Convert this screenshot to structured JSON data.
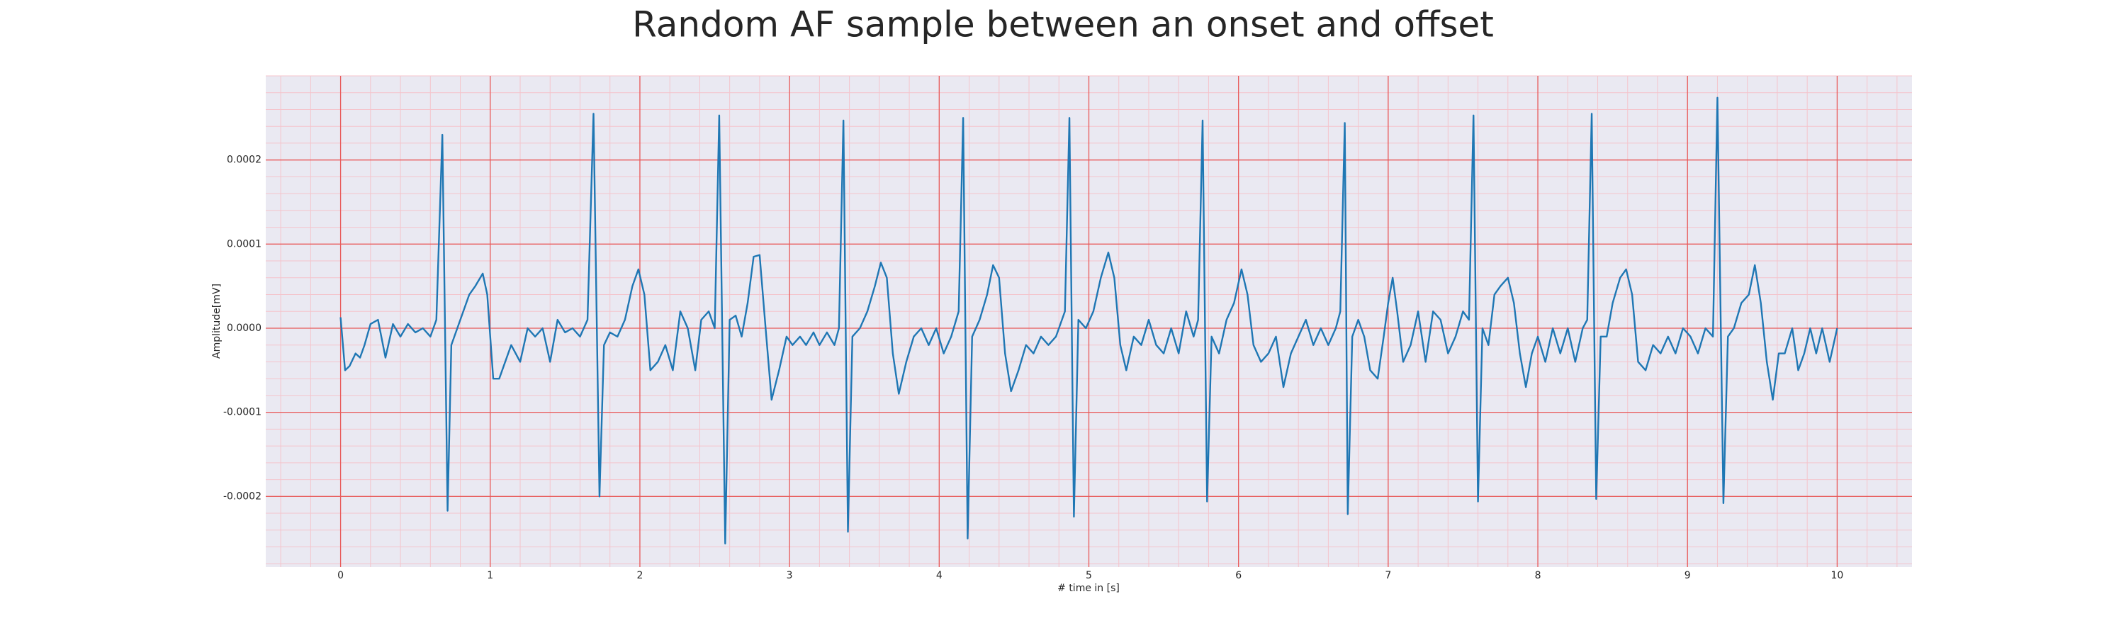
{
  "chart_data": {
    "type": "line",
    "title": "Random AF sample between an onset and offset",
    "xlabel": "# time in [s]",
    "ylabel": "Amplitude[mV]",
    "xlim": [
      -0.5,
      10.5
    ],
    "ylim": [
      -0.000284,
      0.0003
    ],
    "xticks": [
      0,
      1,
      2,
      3,
      4,
      5,
      6,
      7,
      8,
      9,
      10
    ],
    "yticks": [
      -0.0002,
      -0.0001,
      {
        "value": 0,
        "label": "0.0000"
      },
      0.0001,
      0.0002
    ],
    "grid": true,
    "x": [
      0,
      0.03,
      0.06,
      0.1,
      0.13,
      0.16,
      0.2,
      0.25,
      0.3,
      0.35,
      0.4,
      0.45,
      0.5,
      0.55,
      0.6,
      0.64,
      0.68,
      0.715,
      0.74,
      0.78,
      0.82,
      0.86,
      0.9,
      0.95,
      0.98,
      1.02,
      1.06,
      1.1,
      1.14,
      1.2,
      1.25,
      1.3,
      1.35,
      1.4,
      1.45,
      1.5,
      1.55,
      1.6,
      1.65,
      1.69,
      1.73,
      1.76,
      1.8,
      1.85,
      1.9,
      1.95,
      1.99,
      2.03,
      2.07,
      2.12,
      2.17,
      2.22,
      2.27,
      2.32,
      2.37,
      2.41,
      2.46,
      2.5,
      2.53,
      2.57,
      2.6,
      2.64,
      2.68,
      2.72,
      2.76,
      2.8,
      2.84,
      2.88,
      2.93,
      2.98,
      3.02,
      3.07,
      3.11,
      3.16,
      3.2,
      3.25,
      3.3,
      3.33,
      3.36,
      3.39,
      3.42,
      3.47,
      3.52,
      3.57,
      3.61,
      3.65,
      3.69,
      3.73,
      3.78,
      3.83,
      3.88,
      3.93,
      3.98,
      4.03,
      4.08,
      4.13,
      4.16,
      4.19,
      4.22,
      4.27,
      4.32,
      4.36,
      4.4,
      4.44,
      4.48,
      4.53,
      4.58,
      4.63,
      4.68,
      4.73,
      4.78,
      4.84,
      4.87,
      4.9,
      4.93,
      4.98,
      5.03,
      5.08,
      5.13,
      5.17,
      5.21,
      5.25,
      5.3,
      5.35,
      5.4,
      5.45,
      5.5,
      5.55,
      5.6,
      5.65,
      5.7,
      5.73,
      5.76,
      5.79,
      5.82,
      5.87,
      5.92,
      5.97,
      6.02,
      6.06,
      6.1,
      6.15,
      6.2,
      6.25,
      6.3,
      6.35,
      6.4,
      6.45,
      6.5,
      6.55,
      6.6,
      6.65,
      6.68,
      6.71,
      6.73,
      6.76,
      6.8,
      6.84,
      6.88,
      6.93,
      6.97,
      7,
      7.03,
      7.06,
      7.1,
      7.15,
      7.2,
      7.25,
      7.3,
      7.35,
      7.4,
      7.45,
      7.5,
      7.54,
      7.57,
      7.6,
      7.63,
      7.67,
      7.71,
      7.75,
      7.8,
      7.84,
      7.88,
      7.92,
      7.96,
      8,
      8.05,
      8.1,
      8.15,
      8.2,
      8.25,
      8.3,
      8.33,
      8.36,
      8.39,
      8.42,
      8.46,
      8.5,
      8.55,
      8.59,
      8.63,
      8.67,
      8.72,
      8.77,
      8.82,
      8.87,
      8.92,
      8.97,
      9.02,
      9.07,
      9.12,
      9.17,
      9.2,
      9.24,
      9.27,
      9.31,
      9.36,
      9.41,
      9.45,
      9.49,
      9.53,
      9.57,
      9.61,
      9.65,
      9.7,
      9.74,
      9.78,
      9.82,
      9.86,
      9.9,
      9.95,
      10
    ],
    "series": [
      {
        "color": "#1f77b4",
        "values": [
          1.3e-05,
          -5e-05,
          -4.5e-05,
          -3e-05,
          -3.5e-05,
          -2e-05,
          5e-06,
          1e-05,
          -3.5e-05,
          5e-06,
          -1e-05,
          5e-06,
          -5e-06,
          0,
          -1e-05,
          1e-05,
          0.00023,
          -0.000217,
          -2e-05,
          0,
          2e-05,
          4e-05,
          5e-05,
          6.5e-05,
          4e-05,
          -6e-05,
          -6e-05,
          -4e-05,
          -2e-05,
          -4e-05,
          0,
          -1e-05,
          0,
          -4e-05,
          1e-05,
          -5e-06,
          0,
          -1e-05,
          1e-05,
          0.000255,
          -0.0002,
          -2e-05,
          -5e-06,
          -1e-05,
          1e-05,
          5e-05,
          7e-05,
          4e-05,
          -5e-05,
          -4e-05,
          -2e-05,
          -5e-05,
          2e-05,
          0,
          -5e-05,
          1e-05,
          2e-05,
          0,
          0.000253,
          -0.000256,
          1e-05,
          1.5e-05,
          -1e-05,
          3e-05,
          8.5e-05,
          8.7e-05,
          0,
          -8.5e-05,
          -5e-05,
          -1e-05,
          -2e-05,
          -1e-05,
          -2e-05,
          -5e-06,
          -2e-05,
          -5e-06,
          -2e-05,
          0,
          0.000247,
          -0.000242,
          -1e-05,
          0,
          2e-05,
          5e-05,
          7.8e-05,
          6e-05,
          -3e-05,
          -7.8e-05,
          -4e-05,
          -1e-05,
          0,
          -2e-05,
          0,
          -3e-05,
          -1e-05,
          2e-05,
          0.00025,
          -0.00025,
          -1e-05,
          1e-05,
          4e-05,
          7.5e-05,
          6e-05,
          -3e-05,
          -7.5e-05,
          -5e-05,
          -2e-05,
          -3e-05,
          -1e-05,
          -2e-05,
          -1e-05,
          2e-05,
          0.00025,
          -0.000224,
          1e-05,
          0,
          2e-05,
          6e-05,
          9e-05,
          6e-05,
          -2e-05,
          -5e-05,
          -1e-05,
          -2e-05,
          1e-05,
          -2e-05,
          -3e-05,
          0,
          -3e-05,
          2e-05,
          -1e-05,
          1e-05,
          0.000247,
          -0.000206,
          -1e-05,
          -3e-05,
          1e-05,
          3e-05,
          7e-05,
          4e-05,
          -2e-05,
          -4e-05,
          -3e-05,
          -1e-05,
          -7e-05,
          -3e-05,
          -1e-05,
          1e-05,
          -2e-05,
          0,
          -2e-05,
          0,
          2e-05,
          0.000244,
          -0.000221,
          -1e-05,
          1e-05,
          -1e-05,
          -5e-05,
          -6e-05,
          -1e-05,
          3e-05,
          6e-05,
          2e-05,
          -4e-05,
          -2e-05,
          2e-05,
          -4e-05,
          2e-05,
          1e-05,
          -3e-05,
          -1e-05,
          2e-05,
          1e-05,
          0.000253,
          -0.000206,
          0,
          -2e-05,
          4e-05,
          5e-05,
          6e-05,
          3e-05,
          -3e-05,
          -7e-05,
          -3e-05,
          -1e-05,
          -4e-05,
          0,
          -3e-05,
          0,
          -4e-05,
          0,
          1e-05,
          0.000255,
          -0.000203,
          -1e-05,
          -1e-05,
          3e-05,
          6e-05,
          7e-05,
          4e-05,
          -4e-05,
          -5e-05,
          -2e-05,
          -3e-05,
          -1e-05,
          -3e-05,
          0,
          -1e-05,
          -3e-05,
          0,
          -1e-05,
          0.000274,
          -0.000208,
          -1e-05,
          0,
          3e-05,
          4e-05,
          7.5e-05,
          3e-05,
          -4e-05,
          -8.5e-05,
          -3e-05,
          -3e-05,
          0,
          -5e-05,
          -3e-05,
          0,
          -3e-05,
          0,
          -4e-05,
          0
        ]
      }
    ]
  }
}
